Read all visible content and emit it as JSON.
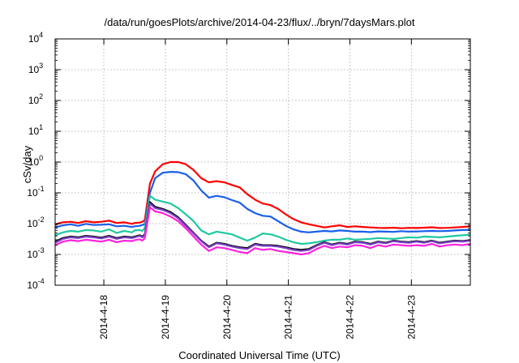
{
  "chart_data": {
    "type": "line",
    "title": "/data/run/goesPlots/archive/2014-04-23/flux/../bryn/7daysMars.plot",
    "xlabel": "Coordinated Universal Time (UTC)",
    "ylabel": "cSv/day",
    "yscale": "log",
    "ylim": [
      0.0001,
      10000
    ],
    "y_ticks": [
      {
        "exp": "-4",
        "value": 0.0001
      },
      {
        "exp": "-3",
        "value": 0.001
      },
      {
        "exp": "-2",
        "value": 0.01
      },
      {
        "exp": "-1",
        "value": 0.1
      },
      {
        "exp": "0",
        "value": 1
      },
      {
        "exp": "1",
        "value": 10
      },
      {
        "exp": "2",
        "value": 100
      },
      {
        "exp": "3",
        "value": 1000
      },
      {
        "exp": "4",
        "value": 10000
      }
    ],
    "y_tick_base": "10",
    "x_ticks": [
      "2014-4-18",
      "2014-4-19",
      "2014-4-20",
      "2014-4-21",
      "2014-4-22",
      "2014-4-23"
    ],
    "xlim": [
      "2014-04-17 05:00",
      "2014-04-23 23:00"
    ],
    "grid": true,
    "x": [
      "2014-04-17 05:00",
      "2014-04-17 08:00",
      "2014-04-17 11:00",
      "2014-04-17 14:00",
      "2014-04-17 17:00",
      "2014-04-17 20:00",
      "2014-04-17 23:00",
      "2014-04-18 02:00",
      "2014-04-18 05:00",
      "2014-04-18 08:00",
      "2014-04-18 11:00",
      "2014-04-18 12:00",
      "2014-04-18 14:00",
      "2014-04-18 15:00",
      "2014-04-18 16:00",
      "2014-04-18 18:00",
      "2014-04-18 20:00",
      "2014-04-18 23:00",
      "2014-04-19 02:00",
      "2014-04-19 05:00",
      "2014-04-19 08:00",
      "2014-04-19 11:00",
      "2014-04-19 14:00",
      "2014-04-19 17:00",
      "2014-04-19 20:00",
      "2014-04-19 23:00",
      "2014-04-20 02:00",
      "2014-04-20 05:00",
      "2014-04-20 08:00",
      "2014-04-20 11:00",
      "2014-04-20 14:00",
      "2014-04-20 17:00",
      "2014-04-20 20:00",
      "2014-04-20 23:00",
      "2014-04-21 02:00",
      "2014-04-21 05:00",
      "2014-04-21 08:00",
      "2014-04-21 11:00",
      "2014-04-21 14:00",
      "2014-04-21 17:00",
      "2014-04-21 20:00",
      "2014-04-21 23:00",
      "2014-04-22 02:00",
      "2014-04-22 05:00",
      "2014-04-22 08:00",
      "2014-04-22 11:00",
      "2014-04-22 14:00",
      "2014-04-22 17:00",
      "2014-04-22 20:00",
      "2014-04-22 23:00",
      "2014-04-23 02:00",
      "2014-04-23 05:00",
      "2014-04-23 08:00",
      "2014-04-23 11:00",
      "2014-04-23 14:00",
      "2014-04-23 17:00",
      "2014-04-23 20:00",
      "2014-04-23 23:00"
    ],
    "series": [
      {
        "color": "#ff0000",
        "values": [
          0.0095,
          0.011,
          0.0115,
          0.0105,
          0.012,
          0.011,
          0.0115,
          0.0125,
          0.0105,
          0.011,
          0.0098,
          0.0105,
          0.0108,
          0.0115,
          0.013,
          0.2,
          0.5,
          0.85,
          1.0,
          1.0,
          0.85,
          0.55,
          0.3,
          0.22,
          0.24,
          0.22,
          0.18,
          0.15,
          0.09,
          0.06,
          0.045,
          0.04,
          0.03,
          0.02,
          0.014,
          0.011,
          0.0095,
          0.0085,
          0.0075,
          0.0082,
          0.0088,
          0.0078,
          0.0082,
          0.0078,
          0.0075,
          0.0073,
          0.0072,
          0.0074,
          0.0071,
          0.0073,
          0.0072,
          0.0074,
          0.0076,
          0.0072,
          0.0073,
          0.0075,
          0.0078,
          0.0082
        ]
      },
      {
        "color": "#1a5fe8",
        "values": [
          0.0075,
          0.0088,
          0.0095,
          0.0085,
          0.0098,
          0.009,
          0.0092,
          0.0095,
          0.0082,
          0.0085,
          0.0078,
          0.0082,
          0.0085,
          0.009,
          0.0095,
          0.1,
          0.3,
          0.45,
          0.48,
          0.47,
          0.4,
          0.25,
          0.12,
          0.07,
          0.08,
          0.072,
          0.058,
          0.048,
          0.03,
          0.022,
          0.018,
          0.017,
          0.012,
          0.0085,
          0.0065,
          0.0055,
          0.0052,
          0.0055,
          0.0058,
          0.0056,
          0.006,
          0.0058,
          0.0055,
          0.0055,
          0.0053,
          0.0056,
          0.0055,
          0.0054,
          0.0057,
          0.0055,
          0.0056,
          0.0057,
          0.0058,
          0.0057,
          0.0058,
          0.006,
          0.0062,
          0.0063
        ]
      },
      {
        "color": "#1fc8a0",
        "values": [
          0.0042,
          0.0052,
          0.0058,
          0.0055,
          0.0062,
          0.006,
          0.0055,
          0.0065,
          0.005,
          0.0058,
          0.0052,
          0.006,
          0.0062,
          0.0058,
          0.0072,
          0.08,
          0.06,
          0.052,
          0.045,
          0.032,
          0.02,
          0.012,
          0.006,
          0.0045,
          0.0055,
          0.005,
          0.0045,
          0.0035,
          0.0028,
          0.0035,
          0.0048,
          0.0045,
          0.0038,
          0.003,
          0.0025,
          0.0022,
          0.0023,
          0.0025,
          0.0028,
          0.003,
          0.003,
          0.0033,
          0.003,
          0.0031,
          0.0032,
          0.0034,
          0.0033,
          0.0032,
          0.0034,
          0.0036,
          0.0035,
          0.0038,
          0.0037,
          0.0036,
          0.0038,
          0.004,
          0.0042,
          0.0044
        ]
      },
      {
        "color": "#000000",
        "values": [
          0.0026,
          0.0034,
          0.0038,
          0.0036,
          0.004,
          0.0038,
          0.0035,
          0.004,
          0.0034,
          0.0038,
          0.0036,
          0.0038,
          0.0042,
          0.0038,
          0.0045,
          0.05,
          0.035,
          0.03,
          0.024,
          0.016,
          0.009,
          0.005,
          0.0028,
          0.0018,
          0.0024,
          0.0022,
          0.0019,
          0.0017,
          0.0016,
          0.0022,
          0.002,
          0.002,
          0.0019,
          0.0017,
          0.0015,
          0.0014,
          0.0015,
          0.002,
          0.0025,
          0.0021,
          0.0024,
          0.0022,
          0.0026,
          0.0025,
          0.0022,
          0.0026,
          0.0024,
          0.0028,
          0.0026,
          0.0025,
          0.0027,
          0.0025,
          0.0028,
          0.0024,
          0.0026,
          0.0028,
          0.0027,
          0.0029
        ]
      },
      {
        "color": "#7a3fc4",
        "values": [
          0.0024,
          0.0032,
          0.0036,
          0.0034,
          0.0038,
          0.0036,
          0.0033,
          0.0038,
          0.0032,
          0.0036,
          0.0034,
          0.0036,
          0.004,
          0.0036,
          0.0043,
          0.045,
          0.032,
          0.028,
          0.022,
          0.015,
          0.0085,
          0.0048,
          0.0027,
          0.0017,
          0.0023,
          0.0021,
          0.0018,
          0.0016,
          0.0015,
          0.0021,
          0.0019,
          0.0019,
          0.0018,
          0.0016,
          0.0014,
          0.0013,
          0.0014,
          0.0019,
          0.0024,
          0.002,
          0.0023,
          0.0021,
          0.0025,
          0.0024,
          0.0021,
          0.0025,
          0.0023,
          0.0027,
          0.0025,
          0.0024,
          0.0026,
          0.0024,
          0.0027,
          0.0023,
          0.0025,
          0.0027,
          0.0026,
          0.0028
        ]
      },
      {
        "color": "#ff22dd",
        "values": [
          0.002,
          0.0026,
          0.0029,
          0.0027,
          0.003,
          0.0028,
          0.0026,
          0.003,
          0.0025,
          0.0028,
          0.0027,
          0.0029,
          0.0031,
          0.0028,
          0.0034,
          0.034,
          0.025,
          0.022,
          0.017,
          0.012,
          0.007,
          0.0038,
          0.0021,
          0.0013,
          0.0017,
          0.0016,
          0.0014,
          0.0012,
          0.0011,
          0.0016,
          0.0014,
          0.0015,
          0.0013,
          0.0012,
          0.0011,
          0.001,
          0.0011,
          0.0015,
          0.0019,
          0.0016,
          0.0018,
          0.0017,
          0.002,
          0.0019,
          0.0016,
          0.002,
          0.0018,
          0.0021,
          0.002,
          0.0019,
          0.002,
          0.0019,
          0.0022,
          0.0018,
          0.002,
          0.0021,
          0.002,
          0.0022
        ]
      }
    ]
  }
}
